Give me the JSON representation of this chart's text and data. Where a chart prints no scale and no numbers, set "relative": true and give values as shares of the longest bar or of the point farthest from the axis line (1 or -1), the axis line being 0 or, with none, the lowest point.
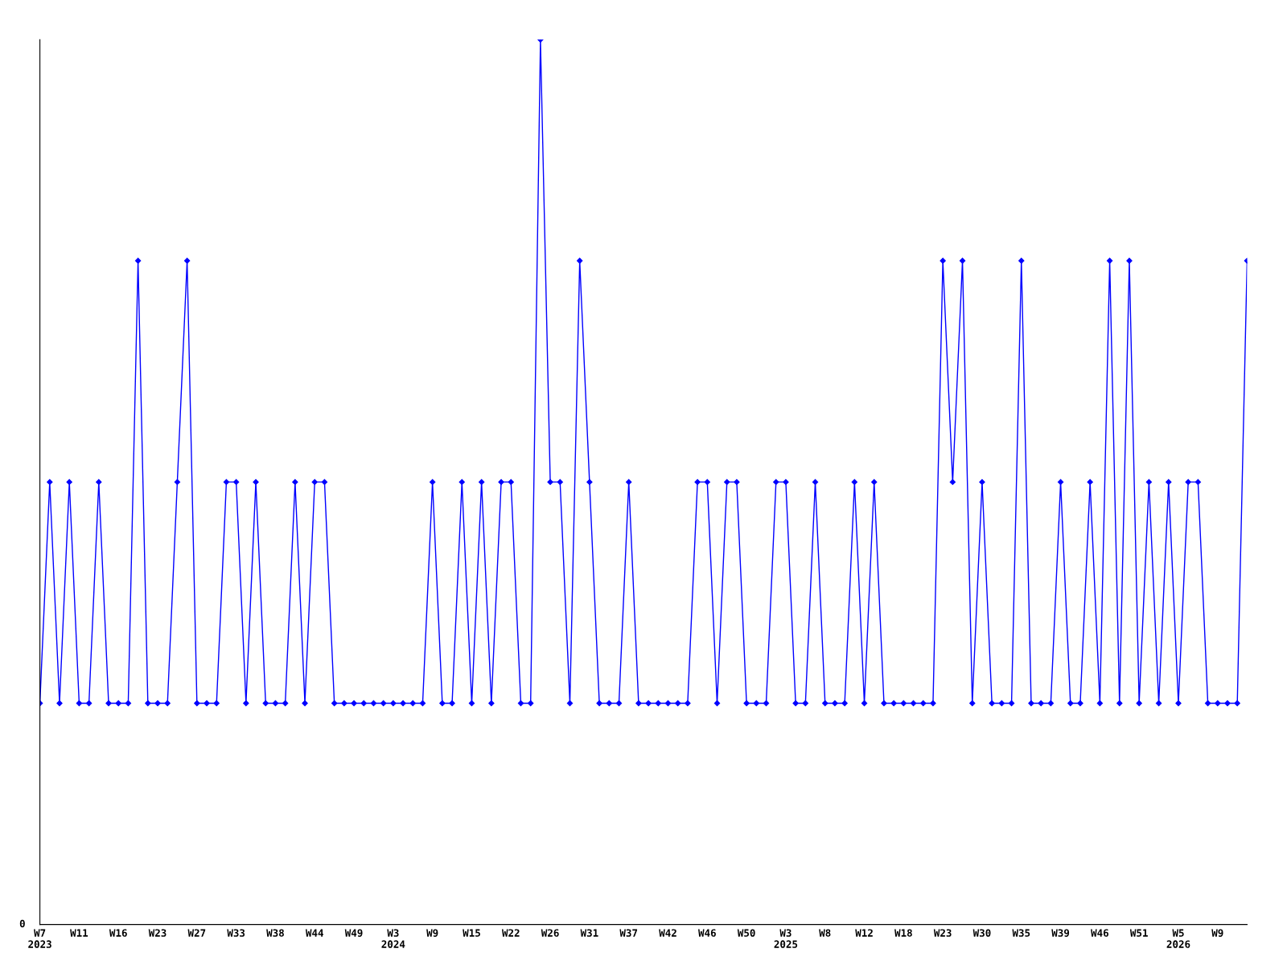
{
  "chart_data": {
    "type": "line",
    "relative": true,
    "color": "#0000ff",
    "marker": "diamond",
    "line_style": "solid",
    "grid": false,
    "legend": false,
    "annotations": [
      "0"
    ],
    "categories": [
      "W7\n2023",
      null,
      null,
      null,
      "W11",
      null,
      null,
      null,
      "W16",
      null,
      null,
      null,
      "W23",
      null,
      null,
      null,
      "W27",
      null,
      null,
      null,
      "W33",
      null,
      null,
      null,
      "W38",
      null,
      null,
      null,
      "W44",
      null,
      null,
      null,
      "W49",
      null,
      null,
      null,
      "W3\n2024",
      null,
      null,
      null,
      "W9",
      null,
      null,
      null,
      "W15",
      null,
      null,
      null,
      "W22",
      null,
      null,
      null,
      "W26",
      null,
      null,
      null,
      "W31",
      null,
      null,
      null,
      "W37",
      null,
      null,
      null,
      "W42",
      null,
      null,
      null,
      "W46",
      null,
      null,
      null,
      "W50",
      null,
      null,
      null,
      "W3\n2025",
      null,
      null,
      null,
      "W8",
      null,
      null,
      null,
      "W12",
      null,
      null,
      null,
      "W18",
      null,
      null,
      null,
      "W23",
      null,
      null,
      null,
      "W30",
      null,
      null,
      null,
      "W35",
      null,
      null,
      null,
      "W39",
      null,
      null,
      null,
      "W46",
      null,
      null,
      null,
      "W51",
      null,
      null,
      null,
      "W5\n2026",
      null,
      null,
      null,
      "W9",
      null,
      null,
      null
    ],
    "values": [
      0.25,
      0.5,
      0.25,
      0.5,
      0.25,
      0.25,
      0.5,
      0.25,
      0.25,
      0.25,
      0.75,
      0.25,
      0.25,
      0.25,
      0.5,
      0.75,
      0.25,
      0.25,
      0.25,
      0.5,
      0.5,
      0.25,
      0.5,
      0.25,
      0.25,
      0.25,
      0.5,
      0.25,
      0.5,
      0.5,
      0.25,
      0.25,
      0.25,
      0.25,
      0.25,
      0.25,
      0.25,
      0.25,
      0.25,
      0.25,
      0.5,
      0.25,
      0.25,
      0.5,
      0.25,
      0.5,
      0.25,
      0.5,
      0.5,
      0.25,
      0.25,
      1,
      0.5,
      0.5,
      0.25,
      0.75,
      0.5,
      0.25,
      0.25,
      0.25,
      0.5,
      0.25,
      0.25,
      0.25,
      0.25,
      0.25,
      0.25,
      0.5,
      0.5,
      0.25,
      0.5,
      0.5,
      0.25,
      0.25,
      0.25,
      0.5,
      0.5,
      0.25,
      0.25,
      0.5,
      0.25,
      0.25,
      0.25,
      0.5,
      0.25,
      0.5,
      0.25,
      0.25,
      0.25,
      0.25,
      0.25,
      0.25,
      0.75,
      0.5,
      0.75,
      0.25,
      0.5,
      0.25,
      0.25,
      0.25,
      0.75,
      0.25,
      0.25,
      0.25,
      0.5,
      0.25,
      0.25,
      0.5,
      0.25,
      0.75,
      0.25,
      0.75,
      0.25,
      0.5,
      0.25,
      0.5,
      0.25,
      0.5,
      0.5,
      0.25,
      0.25,
      0.25,
      0.25,
      0.75
    ]
  }
}
